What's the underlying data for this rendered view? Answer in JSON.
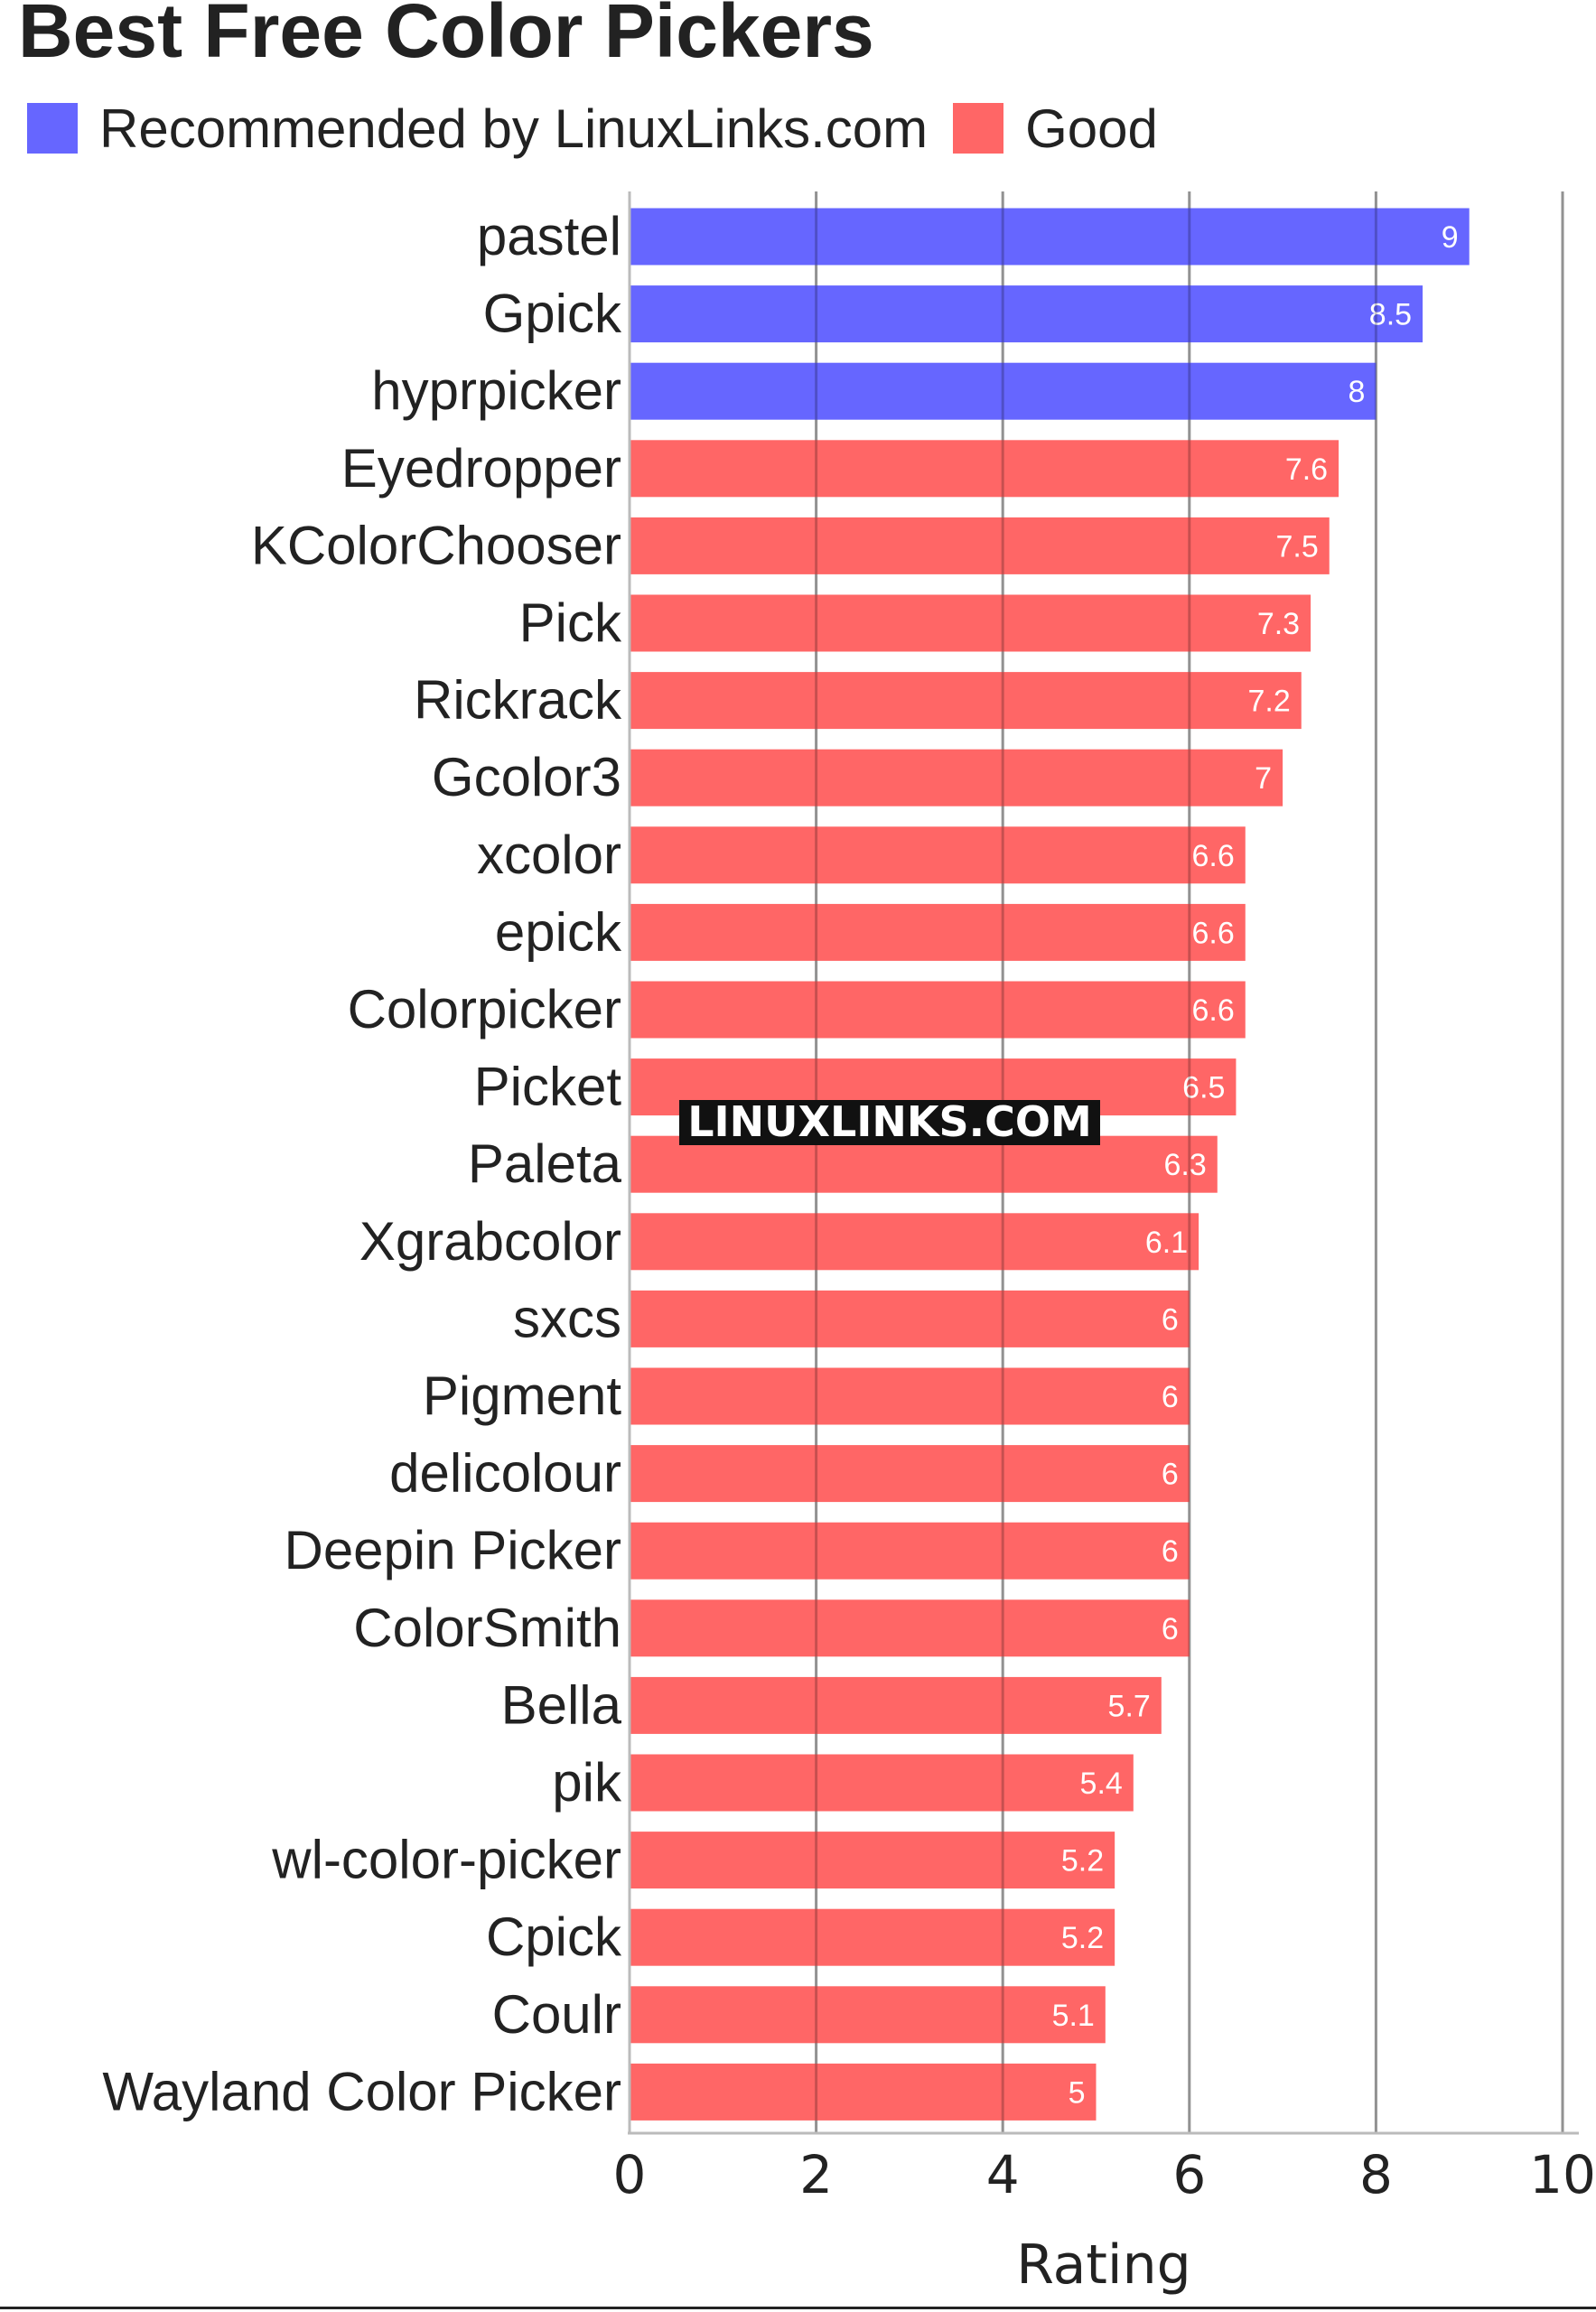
{
  "chart_data": {
    "type": "bar",
    "orientation": "horizontal",
    "title": "Best Free Color Pickers",
    "xlabel": "Rating",
    "ylabel": "",
    "xlim": [
      0,
      10
    ],
    "xticks": [
      0,
      2,
      4,
      6,
      8,
      10
    ],
    "grid": "vertical",
    "legend_position": "top-left",
    "legend": [
      {
        "key": "recommended",
        "label": "Recommended by LinuxLinks.com",
        "color": "#6666FF"
      },
      {
        "key": "good",
        "label": "Good",
        "color": "#FF6666"
      }
    ],
    "categories": [
      "pastel",
      "Gpick",
      "hyprpicker",
      "Eyedropper",
      "KColorChooser",
      "Pick",
      "Rickrack",
      "Gcolor3",
      "xcolor",
      "epick",
      "Colorpicker",
      "Picket",
      "Paleta",
      "Xgrabcolor",
      "sxcs",
      "Pigment",
      "delicolour",
      "Deepin Picker",
      "ColorSmith",
      "Bella",
      "pik",
      "wl-color-picker",
      "Cpick",
      "Coulr",
      "Wayland Color Picker"
    ],
    "values": [
      9,
      8.5,
      8,
      7.6,
      7.5,
      7.3,
      7.2,
      7,
      6.6,
      6.6,
      6.6,
      6.5,
      6.3,
      6.1,
      6,
      6,
      6,
      6,
      6,
      5.7,
      5.4,
      5.2,
      5.2,
      5.1,
      5
    ],
    "value_labels": [
      "9",
      "8.5",
      "8",
      "7.6",
      "7.5",
      "7.3",
      "7.2",
      "7",
      "6.6",
      "6.6",
      "6.6",
      "6.5",
      "6.3",
      "6.1",
      "6",
      "6",
      "6",
      "6",
      "6",
      "5.7",
      "5.4",
      "5.2",
      "5.2",
      "5.1",
      "5"
    ],
    "groups": [
      "recommended",
      "recommended",
      "recommended",
      "good",
      "good",
      "good",
      "good",
      "good",
      "good",
      "good",
      "good",
      "good",
      "good",
      "good",
      "good",
      "good",
      "good",
      "good",
      "good",
      "good",
      "good",
      "good",
      "good",
      "good",
      "good"
    ]
  },
  "watermark": "LINUXLINKS.COM",
  "colors": {
    "text": "#222222",
    "grid": "#BBBBBB",
    "axis": "#BBBBBB",
    "watermark_bg": "#111111",
    "watermark_text": "#FFFFFF"
  }
}
